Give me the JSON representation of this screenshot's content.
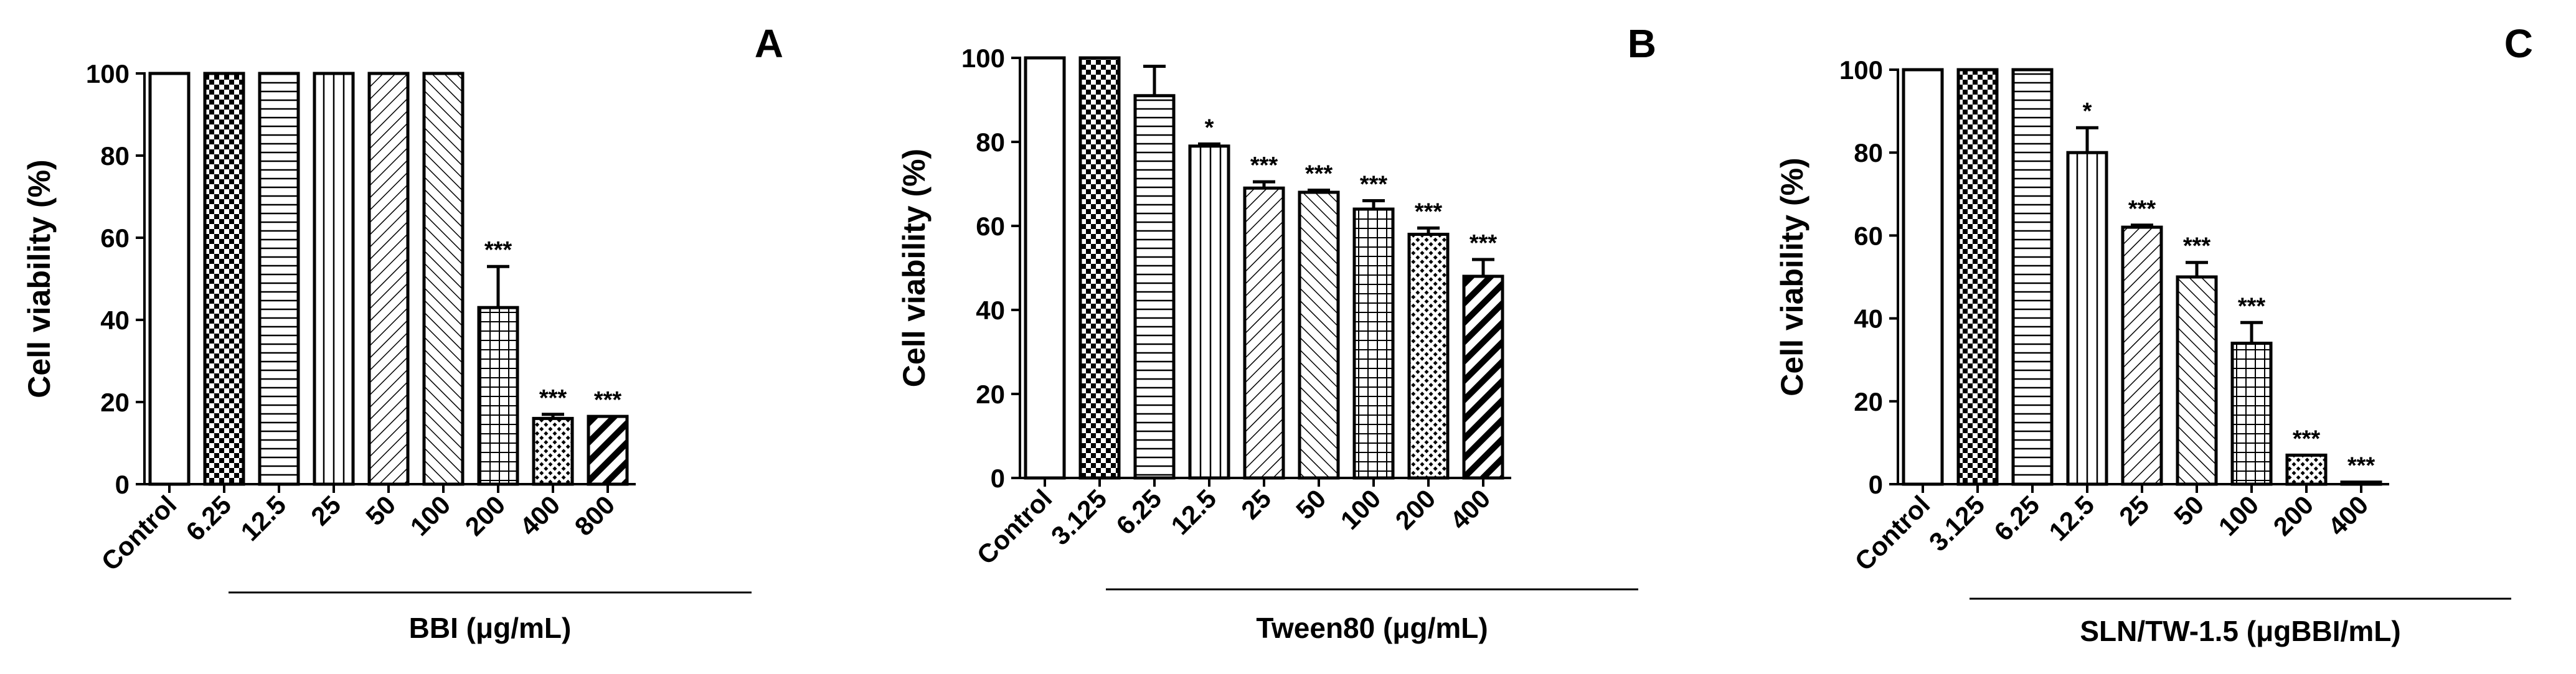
{
  "chart_data": [
    {
      "type": "bar",
      "panel": "A",
      "ylabel": "Cell viability (%)",
      "xlabel": "BBI (μg/mL)",
      "ylim": [
        0,
        100
      ],
      "yticks": [
        0,
        20,
        40,
        60,
        80,
        100
      ],
      "categories": [
        "Control",
        "6.25",
        "12.5",
        "25",
        "50",
        "100",
        "200",
        "400",
        "800"
      ],
      "values": [
        100,
        100,
        100,
        100,
        100,
        100,
        43,
        16,
        16.5
      ],
      "errors": [
        0,
        0,
        0,
        0,
        0,
        0,
        10,
        1,
        0
      ],
      "significance": [
        "",
        "",
        "",
        "",
        "",
        "",
        "***",
        "***",
        "***"
      ],
      "patterns": [
        "open",
        "checker",
        "hlines",
        "vlines",
        "diag-right",
        "diag-left",
        "grid",
        "dots",
        "thick-diag"
      ]
    },
    {
      "type": "bar",
      "panel": "B",
      "ylabel": "Cell viability (%)",
      "xlabel": "Tween80 (μg/mL)",
      "ylim": [
        0,
        100
      ],
      "yticks": [
        0,
        20,
        40,
        60,
        80,
        100
      ],
      "categories": [
        "Control",
        "3.125",
        "6.25",
        "12.5",
        "25",
        "50",
        "100",
        "200",
        "400"
      ],
      "values": [
        100,
        100,
        91,
        79,
        69,
        68,
        64,
        58,
        48
      ],
      "errors": [
        0,
        0,
        7,
        0.5,
        1.5,
        0.5,
        2,
        1.5,
        4
      ],
      "significance": [
        "",
        "",
        "",
        "*",
        "***",
        "***",
        "***",
        "***",
        "***"
      ],
      "patterns": [
        "open",
        "checker",
        "hlines",
        "vlines",
        "diag-right",
        "diag-left",
        "grid",
        "dots",
        "thick-diag"
      ]
    },
    {
      "type": "bar",
      "panel": "C",
      "ylabel": "Cell viability (%)",
      "xlabel": "SLN/TW-1.5 (μgBBI/mL)",
      "ylim": [
        0,
        100
      ],
      "yticks": [
        0,
        20,
        40,
        60,
        80,
        100
      ],
      "categories": [
        "Control",
        "3.125",
        "6.25",
        "12.5",
        "25",
        "50",
        "100",
        "200",
        "400"
      ],
      "values": [
        100,
        100,
        100,
        80,
        62,
        50,
        34,
        7,
        0.5
      ],
      "errors": [
        0,
        0,
        0,
        6,
        0.5,
        3.5,
        5,
        0,
        0
      ],
      "significance": [
        "",
        "",
        "",
        "*",
        "***",
        "***",
        "***",
        "***",
        "***"
      ],
      "patterns": [
        "open",
        "checker",
        "hlines",
        "vlines",
        "diag-right",
        "diag-left",
        "grid",
        "dots",
        "thick-diag"
      ]
    }
  ]
}
